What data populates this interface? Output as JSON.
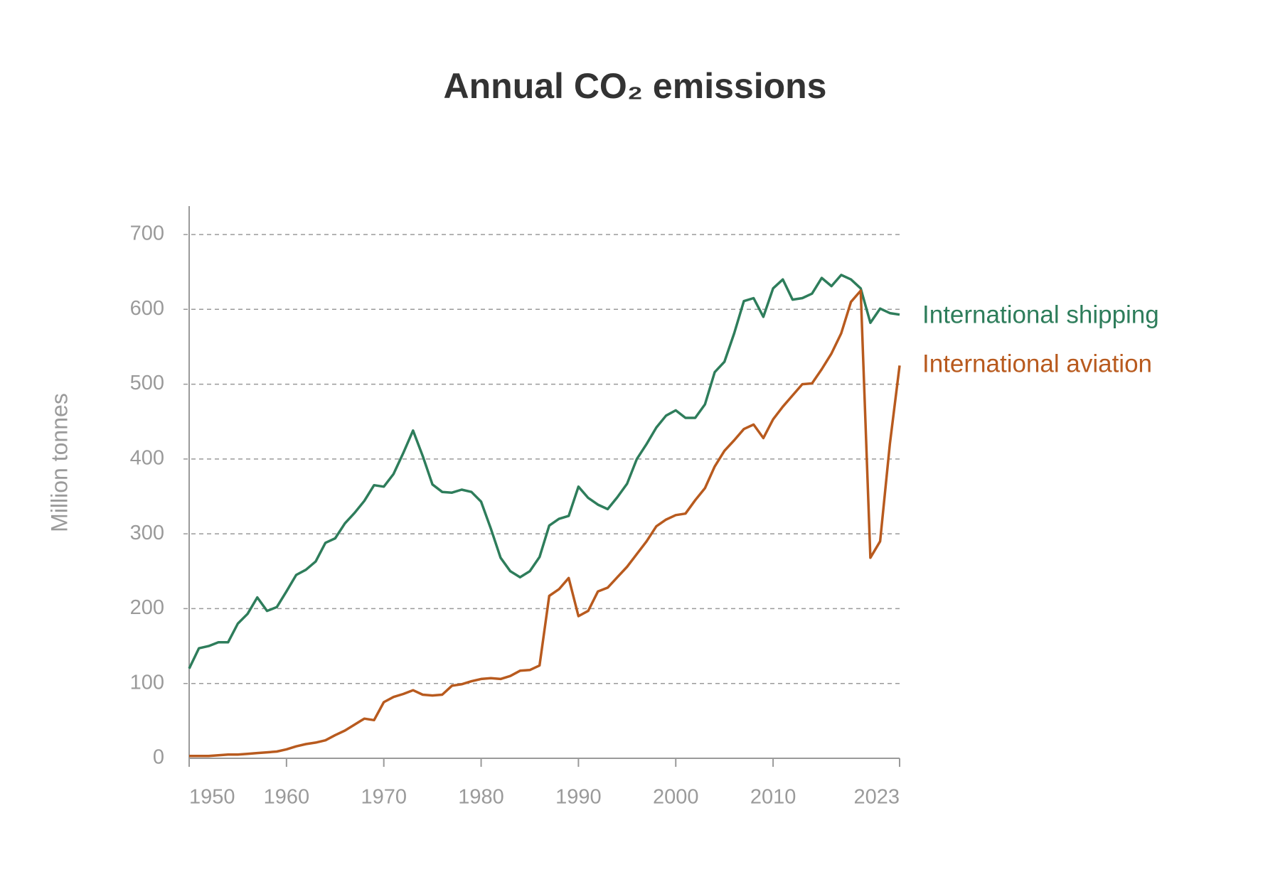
{
  "chart_data": {
    "type": "line",
    "title": "Annual CO₂ emissions",
    "ylabel": "Million tonnes",
    "x": [
      1950,
      1951,
      1952,
      1953,
      1954,
      1955,
      1956,
      1957,
      1958,
      1959,
      1960,
      1961,
      1962,
      1963,
      1964,
      1965,
      1966,
      1967,
      1968,
      1969,
      1970,
      1971,
      1972,
      1973,
      1974,
      1975,
      1976,
      1977,
      1978,
      1979,
      1980,
      1981,
      1982,
      1983,
      1984,
      1985,
      1986,
      1987,
      1988,
      1989,
      1990,
      1991,
      1992,
      1993,
      1994,
      1995,
      1996,
      1997,
      1998,
      1999,
      2000,
      2001,
      2002,
      2003,
      2004,
      2005,
      2006,
      2007,
      2008,
      2009,
      2010,
      2011,
      2012,
      2013,
      2014,
      2015,
      2016,
      2017,
      2018,
      2019,
      2020,
      2021,
      2022,
      2023
    ],
    "series": [
      {
        "name": "International shipping",
        "color": "#2e7d5b",
        "values": [
          120,
          147,
          150,
          155,
          155,
          180,
          193,
          215,
          197,
          202,
          223,
          245,
          252,
          263,
          288,
          294,
          314,
          328,
          344,
          365,
          363,
          380,
          408,
          438,
          404,
          366,
          356,
          355,
          359,
          356,
          343,
          307,
          268,
          250,
          242,
          250,
          269,
          311,
          320,
          324,
          363,
          348,
          339,
          333,
          349,
          367,
          400,
          420,
          442,
          458,
          465,
          455,
          455,
          473,
          516,
          530,
          568,
          611,
          615,
          590,
          628,
          640,
          613,
          615,
          621,
          642,
          631,
          646,
          640,
          628,
          582,
          601,
          595,
          593
        ]
      },
      {
        "name": "International aviation",
        "color": "#b85a1e",
        "values": [
          3,
          3,
          3,
          4,
          5,
          5,
          6,
          7,
          8,
          9,
          12,
          16,
          19,
          21,
          24,
          31,
          37,
          45,
          53,
          51,
          75,
          82,
          86,
          91,
          85,
          84,
          85,
          97,
          99,
          103,
          106,
          107,
          106,
          110,
          117,
          118,
          124,
          217,
          226,
          241,
          190,
          197,
          223,
          228,
          242,
          256,
          273,
          290,
          310,
          319,
          325,
          327,
          345,
          361,
          390,
          411,
          425,
          440,
          446,
          428,
          453,
          470,
          485,
          500,
          501,
          520,
          541,
          568,
          610,
          625,
          268,
          290,
          420,
          525
        ]
      }
    ],
    "xlim": [
      1950,
      2023
    ],
    "xticks": [
      1950,
      1960,
      1970,
      1980,
      1990,
      2000,
      2010,
      2023
    ],
    "ylim": [
      0,
      700
    ],
    "yticks": [
      0,
      100,
      200,
      300,
      400,
      500,
      600,
      700
    ],
    "grid": true
  }
}
